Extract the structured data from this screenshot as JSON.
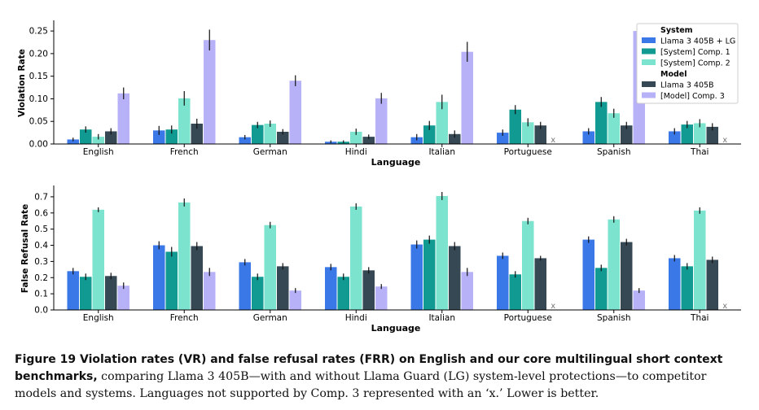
{
  "chart_data": [
    {
      "type": "bar",
      "title": "",
      "xlabel": "Language",
      "ylabel": "Violation Rate",
      "ylim": [
        0,
        0.27
      ],
      "yticks": [
        0.0,
        0.05,
        0.1,
        0.15,
        0.2,
        0.25
      ],
      "ytick_labels": [
        "0.00",
        "0.05",
        "0.10",
        "0.15",
        "0.20",
        "0.25"
      ],
      "categories": [
        "English",
        "French",
        "German",
        "Hindi",
        "Italian",
        "Portuguese",
        "Spanish",
        "Thai"
      ],
      "series": [
        {
          "name": "Llama 3 405B + LG",
          "color": "#3b78e7",
          "values": [
            0.01,
            0.03,
            0.015,
            0.005,
            0.015,
            0.025,
            0.028,
            0.028
          ],
          "err": [
            0.004,
            0.01,
            0.005,
            0.003,
            0.007,
            0.007,
            0.007,
            0.007
          ]
        },
        {
          "name": "[System] Comp. 1",
          "color": "#109a91",
          "values": [
            0.032,
            0.032,
            0.042,
            0.005,
            0.041,
            0.076,
            0.093,
            0.043
          ],
          "err": [
            0.007,
            0.009,
            0.007,
            0.003,
            0.01,
            0.01,
            0.011,
            0.008
          ]
        },
        {
          "name": "[System] Comp. 2",
          "color": "#7be3ce",
          "values": [
            0.016,
            0.101,
            0.045,
            0.027,
            0.093,
            0.048,
            0.068,
            0.046
          ],
          "err": [
            0.006,
            0.016,
            0.007,
            0.007,
            0.016,
            0.009,
            0.01,
            0.009
          ]
        },
        {
          "name": "Llama 3 405B",
          "color": "#374855",
          "values": [
            0.028,
            0.045,
            0.027,
            0.016,
            0.022,
            0.041,
            0.041,
            0.038
          ],
          "err": [
            0.007,
            0.011,
            0.006,
            0.005,
            0.008,
            0.008,
            0.008,
            0.008
          ]
        },
        {
          "name": "[Model] Comp. 3",
          "color": "#b7b2f7",
          "values": [
            0.112,
            0.23,
            0.14,
            0.101,
            0.204,
            null,
            0.25,
            null
          ],
          "err": [
            0.013,
            0.023,
            0.012,
            0.012,
            0.022,
            null,
            0.015,
            null
          ]
        }
      ],
      "legend": {
        "position": "top-right",
        "groups": [
          {
            "title": "System",
            "items": [
              "Llama 3 405B + LG",
              "[System] Comp. 1",
              "[System] Comp. 2"
            ]
          },
          {
            "title": "Model",
            "items": [
              "Llama 3 405B",
              "[Model] Comp. 3"
            ]
          }
        ]
      },
      "unsupported_marker": "x"
    },
    {
      "type": "bar",
      "title": "",
      "xlabel": "Language",
      "ylabel": "False Refusal Rate",
      "ylim": [
        0,
        0.76
      ],
      "yticks": [
        0.0,
        0.1,
        0.2,
        0.3,
        0.4,
        0.5,
        0.6,
        0.7
      ],
      "ytick_labels": [
        "0.0",
        "0.1",
        "0.2",
        "0.3",
        "0.4",
        "0.5",
        "0.6",
        "0.7"
      ],
      "categories": [
        "English",
        "French",
        "German",
        "Hindi",
        "Italian",
        "Portuguese",
        "Spanish",
        "Thai"
      ],
      "series": [
        {
          "name": "Llama 3 405B + LG",
          "color": "#3b78e7",
          "values": [
            0.24,
            0.4,
            0.295,
            0.265,
            0.405,
            0.335,
            0.435,
            0.32
          ],
          "err": [
            0.02,
            0.025,
            0.02,
            0.02,
            0.025,
            0.02,
            0.02,
            0.02
          ]
        },
        {
          "name": "[System] Comp. 1",
          "color": "#109a91",
          "values": [
            0.205,
            0.36,
            0.205,
            0.205,
            0.435,
            0.22,
            0.26,
            0.27
          ],
          "err": [
            0.02,
            0.03,
            0.02,
            0.02,
            0.025,
            0.02,
            0.02,
            0.02
          ]
        },
        {
          "name": "[System] Comp. 2",
          "color": "#7be3ce",
          "values": [
            0.62,
            0.665,
            0.525,
            0.64,
            0.705,
            0.55,
            0.56,
            0.615
          ],
          "err": [
            0.015,
            0.025,
            0.02,
            0.02,
            0.025,
            0.02,
            0.02,
            0.02
          ]
        },
        {
          "name": "Llama 3 405B",
          "color": "#374855",
          "values": [
            0.21,
            0.395,
            0.27,
            0.245,
            0.395,
            0.32,
            0.42,
            0.31
          ],
          "err": [
            0.02,
            0.025,
            0.02,
            0.02,
            0.025,
            0.015,
            0.02,
            0.02
          ]
        },
        {
          "name": "[Model] Comp. 3",
          "color": "#b7b2f7",
          "values": [
            0.15,
            0.235,
            0.12,
            0.145,
            0.235,
            null,
            0.12,
            null
          ],
          "err": [
            0.02,
            0.025,
            0.015,
            0.015,
            0.025,
            null,
            0.015,
            null
          ]
        }
      ],
      "unsupported_marker": "x"
    }
  ],
  "caption": {
    "head": "Figure 19 Violation rates (VR) and false refusal rates (FRR) on English and our core multilingual short context benchmarks,",
    "body": "comparing Llama 3 405B—with and without Llama Guard (LG) system-level protections—to competitor models and systems. Languages not supported by Comp. 3 represented with an ‘x.’ Lower is better."
  }
}
